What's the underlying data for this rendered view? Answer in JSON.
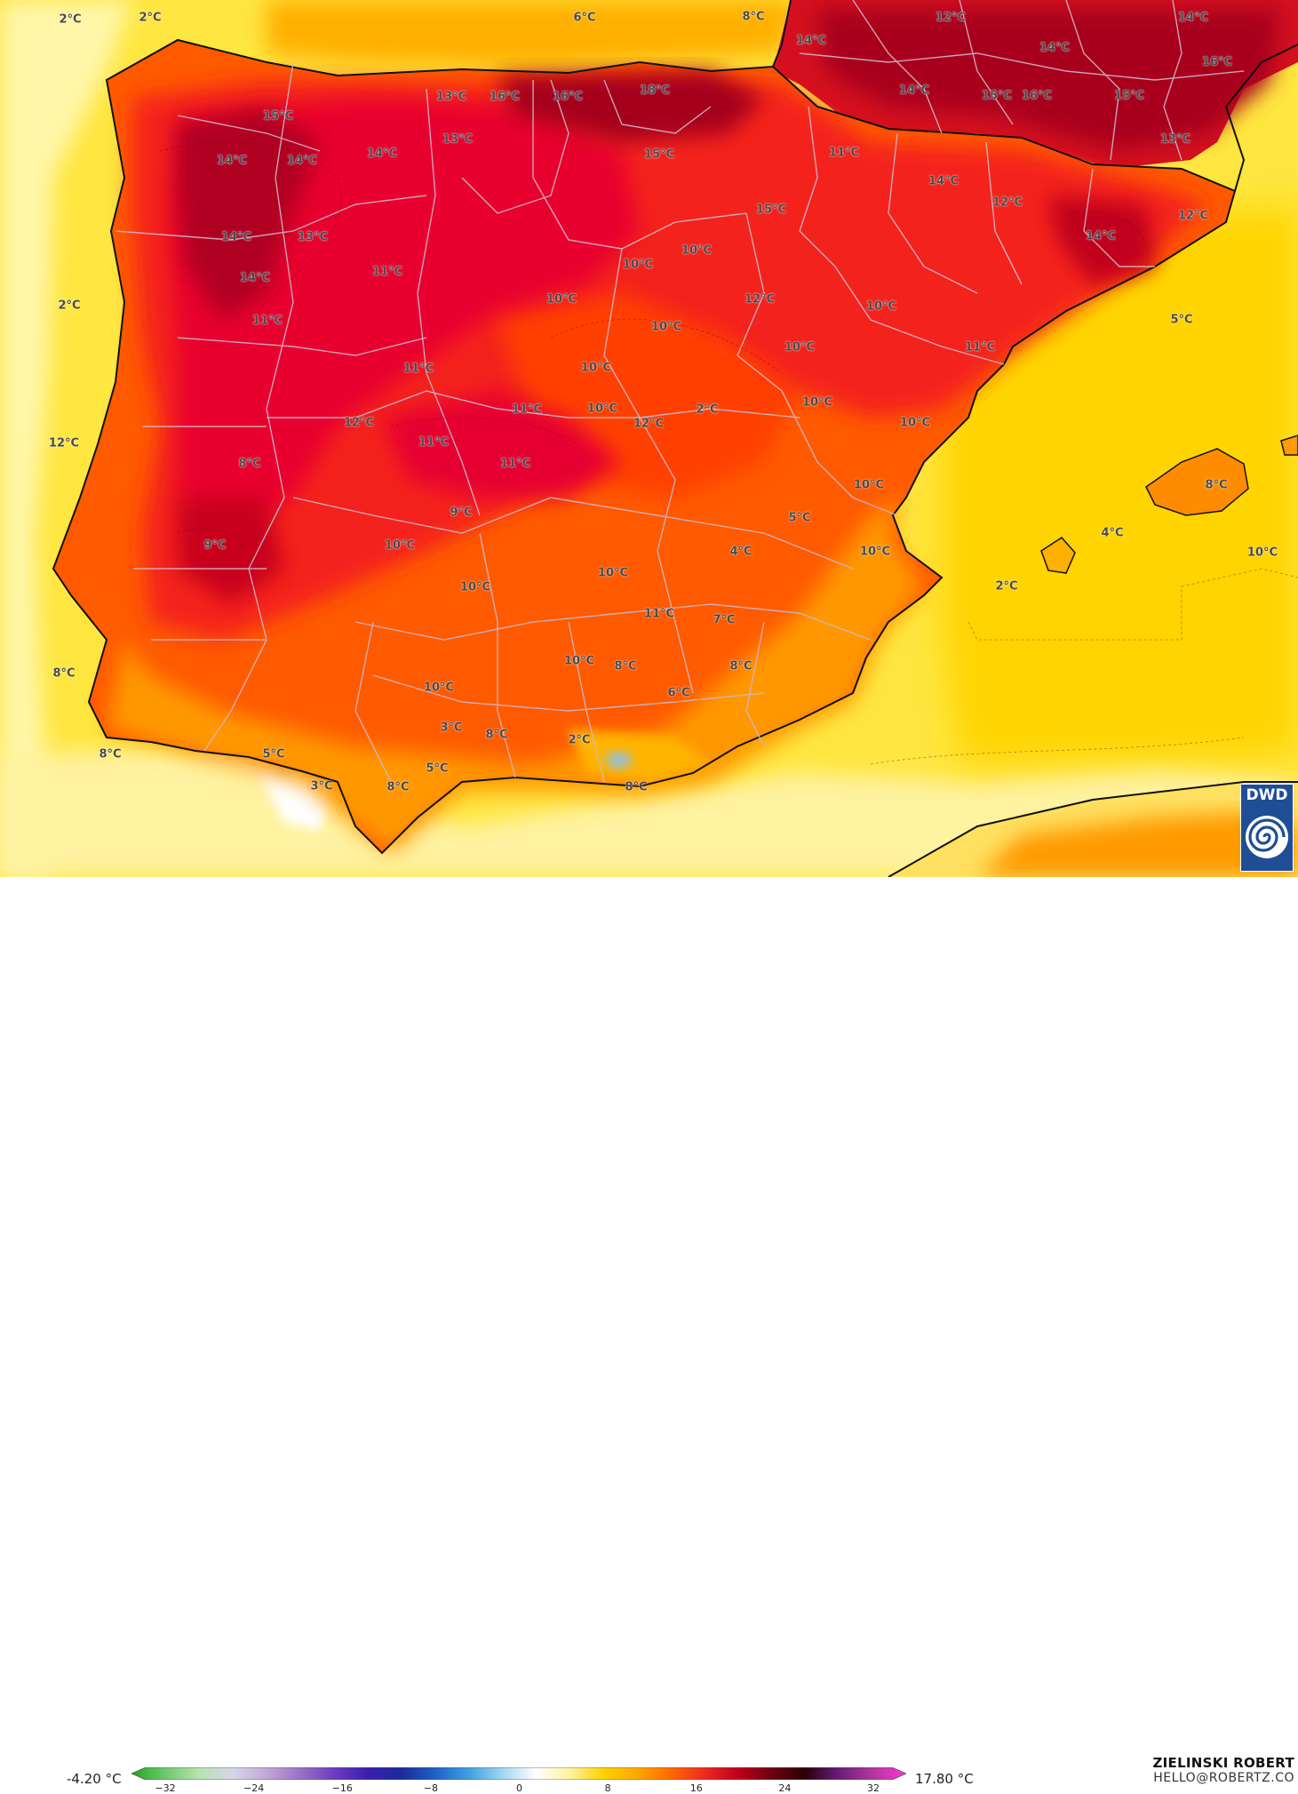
{
  "map": {
    "labels": [
      "2°C",
      "2°C",
      "6°C",
      "8°C",
      "12°C",
      "14°C",
      "14°C",
      "14°C",
      "16°C",
      "14°C",
      "15°C",
      "16°C",
      "15°C",
      "13°C",
      "15°C",
      "16°C",
      "13°C",
      "16°C",
      "18°C",
      "13°C",
      "14°C",
      "14°C",
      "14°C",
      "15°C",
      "11°C",
      "14°C",
      "12°C",
      "15°C",
      "13°C",
      "14°C",
      "14°C",
      "12°C",
      "10°C",
      "10°C",
      "14°C",
      "11°C",
      "12°C",
      "2°C",
      "10°C",
      "10°C",
      "5°C",
      "11°C",
      "10°C",
      "10°C",
      "11°C",
      "11°C",
      "10°C",
      "10°C",
      "10°C",
      "11°C",
      "2°C",
      "12°C",
      "12°C",
      "12°C",
      "10°C",
      "11°C",
      "8°C",
      "11°C",
      "10°C",
      "8°C",
      "9°C",
      "5°C",
      "4°C",
      "9°C",
      "10°C",
      "4°C",
      "10°C",
      "10°C",
      "10°C",
      "2°C",
      "10°C",
      "11°C",
      "7°C",
      "8°C",
      "10°C",
      "8°C",
      "8°C",
      "10°C",
      "6°C",
      "3°C",
      "8°C",
      "2°C",
      "8°C",
      "5°C",
      "5°C",
      "3°C",
      "8°C",
      "8°C"
    ]
  },
  "legend": {
    "min_label": "-4.20 °C",
    "max_label": "17.80 °C",
    "ticks": [
      "−32",
      "−24",
      "−16",
      "−8",
      "0",
      "8",
      "16",
      "24",
      "32"
    ],
    "colors": [
      "#1fa81f",
      "#6ec96e",
      "#b8e2b0",
      "#d6d6e6",
      "#c2a8d8",
      "#9a72c8",
      "#6f3cc0",
      "#3a1fb0",
      "#1a2a9a",
      "#1f5fc8",
      "#3ea0e0",
      "#9fd6f0",
      "#ffffff",
      "#fff2a0",
      "#ffd200",
      "#ffa800",
      "#ff6a00",
      "#f2281e",
      "#c00018",
      "#6e0010",
      "#2a0008",
      "#6a1c7a",
      "#b0389a",
      "#ff30e0"
    ]
  },
  "author": {
    "name": "ZIELINSKI ROBERT",
    "email": "HELLO@ROBERTZ.CO"
  },
  "logo": {
    "text": "DWD"
  }
}
